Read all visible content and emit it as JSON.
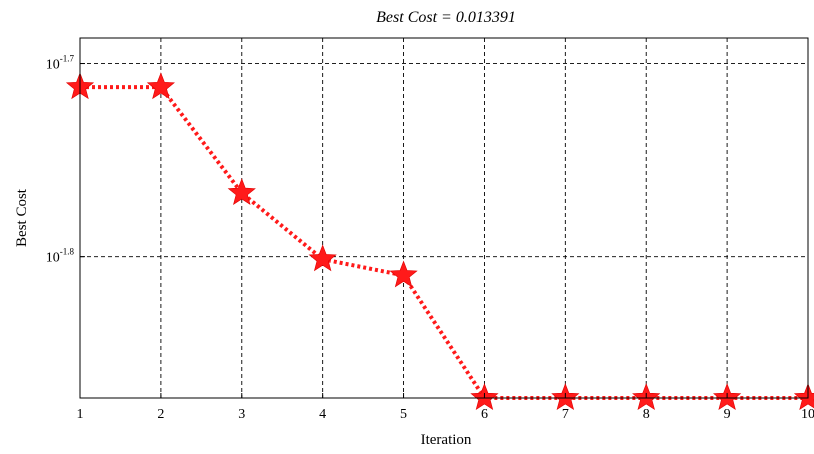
{
  "chart_data": {
    "type": "line",
    "title": "Best Cost = 0.013391",
    "xlabel": "Iteration",
    "ylabel": "Best Cost",
    "x": [
      1,
      2,
      3,
      4,
      5,
      6,
      7,
      8,
      9,
      10
    ],
    "series": [
      {
        "values": [
          0.0194,
          0.0194,
          0.0171,
          0.0158,
          0.0155,
          0.013391,
          0.013391,
          0.013391,
          0.013391,
          0.013391
        ],
        "color": "#ff1a1a",
        "line_style": "dotted",
        "marker": "star"
      }
    ],
    "x_ticks": [
      "1",
      "2",
      "3",
      "4",
      "5",
      "6",
      "7",
      "8",
      "9",
      "10"
    ],
    "y_scale": "log",
    "y_ticks": [
      {
        "base": "10",
        "exp": "-1.7",
        "value": 0.019953
      },
      {
        "base": "10",
        "exp": "-1.8",
        "value": 0.015849
      }
    ],
    "xlim": [
      1,
      10
    ],
    "ylim": [
      0.013391,
      0.02057
    ],
    "grid": true
  }
}
